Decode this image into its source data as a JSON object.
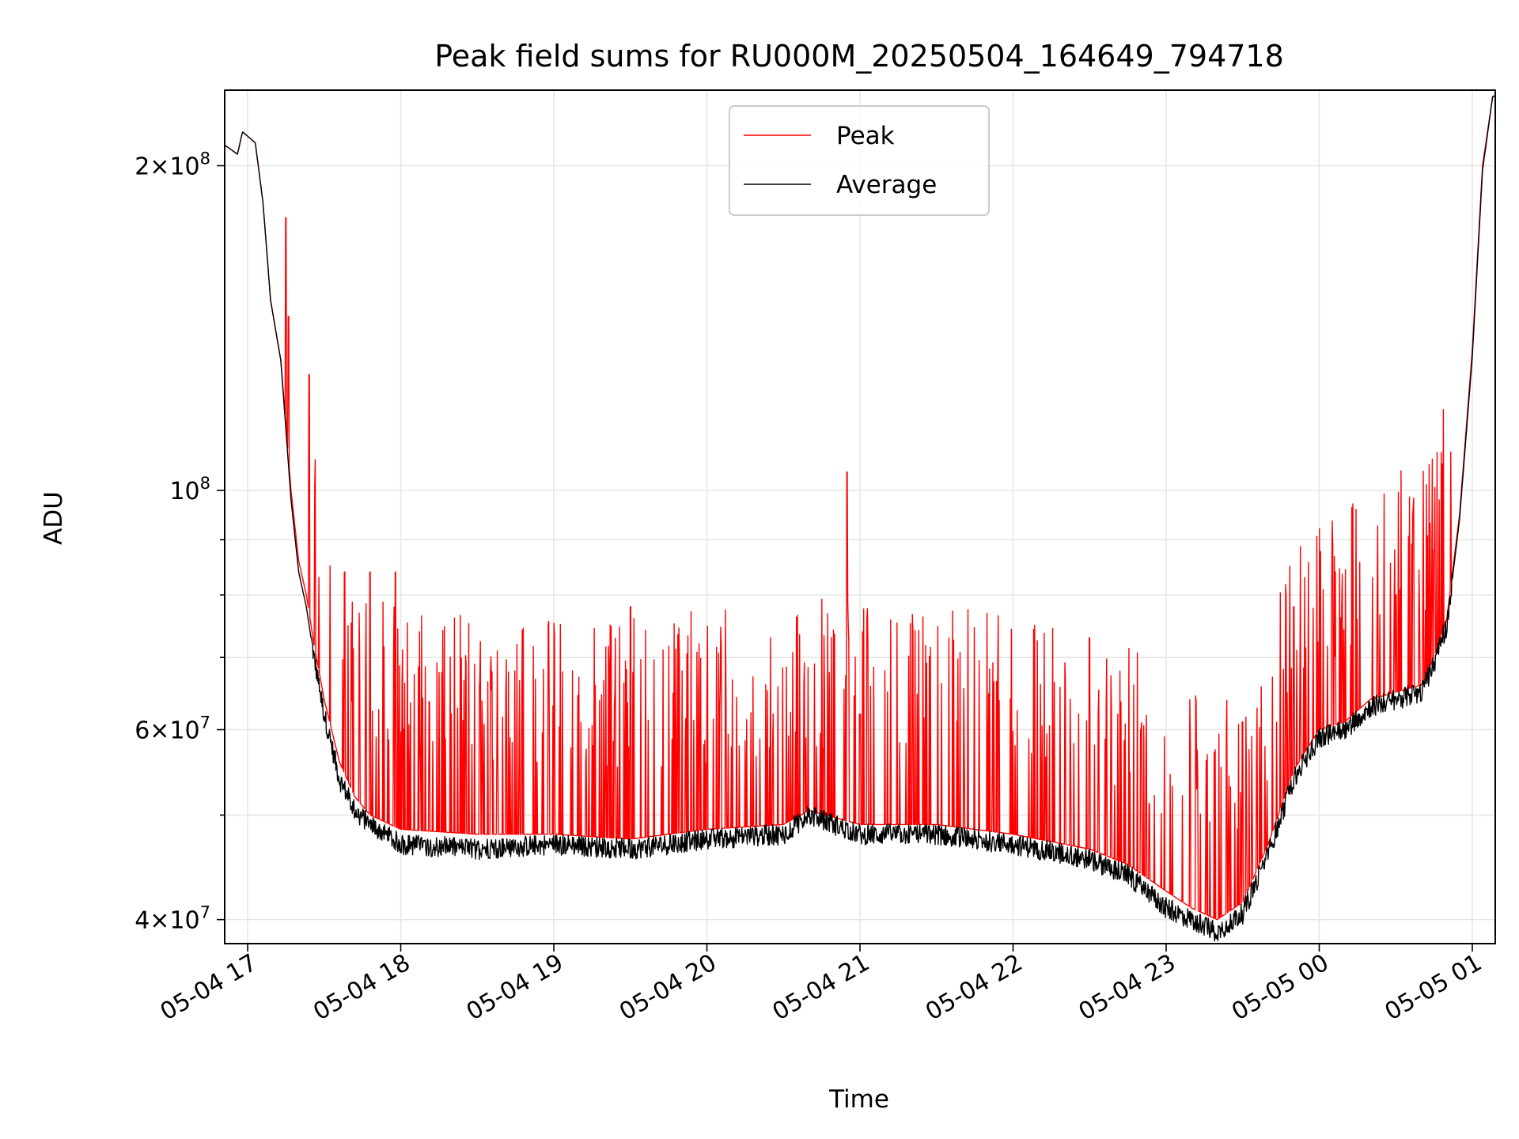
{
  "chart_data": {
    "type": "line",
    "title": "Peak field sums for RU000M_20250504_164649_794718",
    "xlabel": "Time",
    "ylabel": "ADU",
    "y_scale": "log",
    "ylim": [
      38000000,
      235000000
    ],
    "xlim": [
      "2025-05-04 16:51",
      "2025-05-05 01:09"
    ],
    "grid": true,
    "legend_position": "top-center",
    "x_ticks": [
      {
        "at": "2025-05-04 17:00",
        "label": "05-04 17"
      },
      {
        "at": "2025-05-04 18:00",
        "label": "05-04 18"
      },
      {
        "at": "2025-05-04 19:00",
        "label": "05-04 19"
      },
      {
        "at": "2025-05-04 20:00",
        "label": "05-04 20"
      },
      {
        "at": "2025-05-04 21:00",
        "label": "05-04 21"
      },
      {
        "at": "2025-05-04 22:00",
        "label": "05-04 22"
      },
      {
        "at": "2025-05-04 23:00",
        "label": "05-04 23"
      },
      {
        "at": "2025-05-05 00:00",
        "label": "05-05 00"
      },
      {
        "at": "2025-05-05 01:00",
        "label": "05-05 01"
      }
    ],
    "y_ticks": [
      {
        "value": 40000000,
        "mantissa": "4",
        "exponent": "7"
      },
      {
        "value": 60000000,
        "mantissa": "6",
        "exponent": "7"
      },
      {
        "value": 100000000,
        "mantissa": "",
        "exponent": "8"
      },
      {
        "value": 200000000,
        "mantissa": "2",
        "exponent": "8"
      }
    ],
    "y_minor_ticks": [
      50000000,
      70000000,
      80000000,
      90000000
    ],
    "series": [
      {
        "name": "Peak",
        "color": "#ff0000",
        "x": [
          "2025-05-04 16:51",
          "2025-05-04 16:56",
          "2025-05-04 16:58",
          "2025-05-04 17:00",
          "2025-05-04 17:03",
          "2025-05-04 17:06",
          "2025-05-04 17:09",
          "2025-05-04 17:13",
          "2025-05-04 17:17",
          "2025-05-04 17:20",
          "2025-05-04 17:23",
          "2025-05-04 17:26",
          "2025-05-04 17:30",
          "2025-05-04 17:36",
          "2025-05-04 17:42",
          "2025-05-04 17:48",
          "2025-05-04 18:00",
          "2025-05-04 18:30",
          "2025-05-04 19:00",
          "2025-05-04 19:30",
          "2025-05-04 20:00",
          "2025-05-04 20:30",
          "2025-05-04 20:40",
          "2025-05-04 21:00",
          "2025-05-04 21:30",
          "2025-05-04 22:00",
          "2025-05-04 22:30",
          "2025-05-04 22:45",
          "2025-05-04 23:00",
          "2025-05-04 23:10",
          "2025-05-04 23:20",
          "2025-05-04 23:30",
          "2025-05-04 23:40",
          "2025-05-04 23:50",
          "2025-05-05 00:00",
          "2025-05-05 00:10",
          "2025-05-05 00:20",
          "2025-05-05 00:30",
          "2025-05-05 00:40",
          "2025-05-05 00:45",
          "2025-05-05 00:50",
          "2025-05-05 00:55",
          "2025-05-05 01:00",
          "2025-05-05 01:04",
          "2025-05-05 01:08"
        ],
        "y": [
          209000000,
          205000000,
          215000000,
          213000000,
          210000000,
          185000000,
          150000000,
          132000000,
          100000000,
          86000000,
          80000000,
          72000000,
          64000000,
          56000000,
          52000000,
          50000000,
          48500000,
          48000000,
          48000000,
          47500000,
          48500000,
          49000000,
          50500000,
          49000000,
          49000000,
          48000000,
          46500000,
          45000000,
          42500000,
          41000000,
          40000000,
          41500000,
          47000000,
          55000000,
          60000000,
          61000000,
          64000000,
          65000000,
          66000000,
          70000000,
          76000000,
          95000000,
          135000000,
          200000000,
          232000000
        ]
      },
      {
        "name": "Average",
        "color": "#000000",
        "x": [
          "2025-05-04 16:51",
          "2025-05-04 16:56",
          "2025-05-04 16:58",
          "2025-05-04 17:00",
          "2025-05-04 17:03",
          "2025-05-04 17:06",
          "2025-05-04 17:09",
          "2025-05-04 17:13",
          "2025-05-04 17:17",
          "2025-05-04 17:20",
          "2025-05-04 17:23",
          "2025-05-04 17:26",
          "2025-05-04 17:30",
          "2025-05-04 17:36",
          "2025-05-04 17:42",
          "2025-05-04 17:48",
          "2025-05-04 18:00",
          "2025-05-04 18:30",
          "2025-05-04 19:00",
          "2025-05-04 19:30",
          "2025-05-04 20:00",
          "2025-05-04 20:30",
          "2025-05-04 20:40",
          "2025-05-04 21:00",
          "2025-05-04 21:30",
          "2025-05-04 22:00",
          "2025-05-04 22:30",
          "2025-05-04 22:45",
          "2025-05-04 23:00",
          "2025-05-04 23:10",
          "2025-05-04 23:20",
          "2025-05-04 23:30",
          "2025-05-04 23:40",
          "2025-05-04 23:50",
          "2025-05-05 00:00",
          "2025-05-05 00:10",
          "2025-05-05 00:20",
          "2025-05-05 00:30",
          "2025-05-05 00:40",
          "2025-05-05 00:45",
          "2025-05-05 00:50",
          "2025-05-05 00:55",
          "2025-05-05 01:00",
          "2025-05-05 01:04",
          "2025-05-05 01:08"
        ],
        "y": [
          209000000,
          205000000,
          215000000,
          213000000,
          210000000,
          185000000,
          150000000,
          132000000,
          98000000,
          84000000,
          78000000,
          70000000,
          62000000,
          54000000,
          50500000,
          49000000,
          47000000,
          46500000,
          47000000,
          46500000,
          47500000,
          48000000,
          50000000,
          48000000,
          48000000,
          47000000,
          45500000,
          44000000,
          41000000,
          40000000,
          39000000,
          40500000,
          46000000,
          54000000,
          59000000,
          60000000,
          63000000,
          64000000,
          65000000,
          69000000,
          75000000,
          94000000,
          133000000,
          198000000,
          232000000
        ]
      }
    ],
    "peak_spikes": {
      "x": [
        "2025-05-04 17:15",
        "2025-05-04 17:16",
        "2025-05-04 17:24",
        "2025-05-04 17:38",
        "2025-05-04 17:48",
        "2025-05-04 17:58",
        "2025-05-04 19:30",
        "2025-05-04 20:55",
        "2025-05-04 21:00",
        "2025-05-04 22:30",
        "2025-05-04 22:50",
        "2025-05-04 23:30",
        "2025-05-04 23:50",
        "2025-05-05 00:30",
        "2025-05-05 00:45"
      ],
      "y": [
        179000000,
        145000000,
        128000000,
        84000000,
        84000000,
        84000000,
        78000000,
        104000000,
        62000000,
        73000000,
        60000000,
        61000000,
        78000000,
        80000000,
        88000000
      ]
    }
  }
}
